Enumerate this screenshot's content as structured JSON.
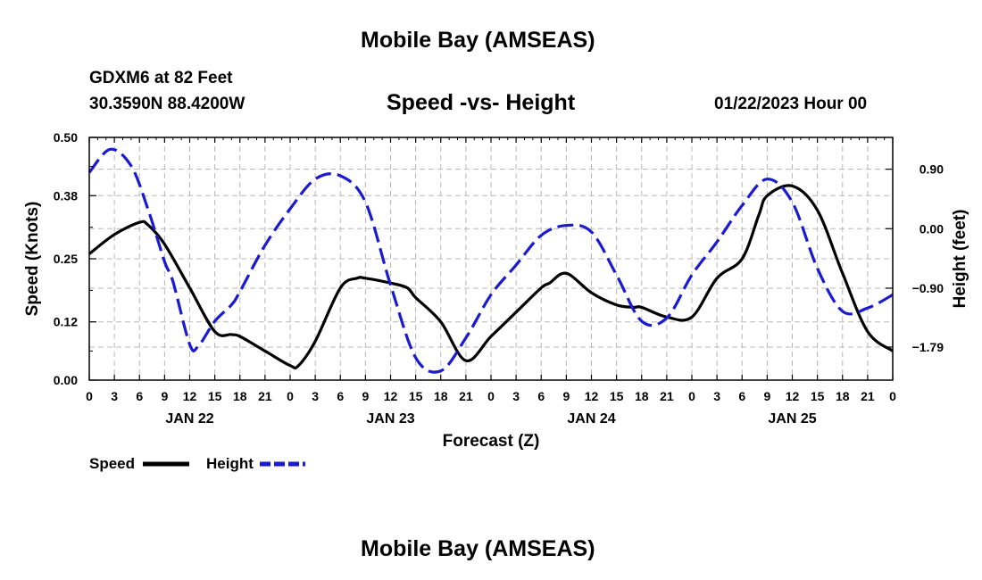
{
  "header": {
    "title": "Mobile Bay (AMSEAS)",
    "station": "GDXM6 at 82 Feet",
    "coords": "30.3590N  88.4200W",
    "datetime": "01/22/2023 Hour 00"
  },
  "footer": {
    "title": "Mobile Bay (AMSEAS)"
  },
  "legend": {
    "speed_label": "Speed",
    "height_label": "Height"
  },
  "colors": {
    "speed": "#000000",
    "height": "#1a1ad0",
    "grid": "#b8b8b8"
  },
  "chart_data": {
    "type": "line",
    "title": "Speed -vs- Height",
    "xlabel": "Forecast (Z)",
    "ylabel": "Speed (Knots)",
    "y2label": "Height (feet)",
    "xlim": [
      0,
      96
    ],
    "ylim": [
      0,
      0.5
    ],
    "y2lim": [
      -2.29,
      1.38
    ],
    "x_ticks": [
      0,
      3,
      6,
      9,
      12,
      15,
      18,
      21,
      24,
      27,
      30,
      33,
      36,
      39,
      42,
      45,
      48,
      51,
      54,
      57,
      60,
      63,
      66,
      69,
      72,
      75,
      78,
      81,
      84,
      87,
      90,
      93,
      96
    ],
    "x_tick_labels": [
      "0",
      "3",
      "6",
      "9",
      "12",
      "15",
      "18",
      "21",
      "0",
      "3",
      "6",
      "9",
      "12",
      "15",
      "18",
      "21",
      "0",
      "3",
      "6",
      "9",
      "12",
      "15",
      "18",
      "21",
      "0",
      "3",
      "6",
      "9",
      "12",
      "15",
      "18",
      "21",
      "0"
    ],
    "day_labels": [
      {
        "x": 12,
        "label": "JAN 22"
      },
      {
        "x": 36,
        "label": "JAN 23"
      },
      {
        "x": 60,
        "label": "JAN 24"
      },
      {
        "x": 84,
        "label": "JAN 25"
      }
    ],
    "y_ticks": [
      0.0,
      0.12,
      0.25,
      0.38,
      0.5
    ],
    "y_tick_labels": [
      "0.00",
      "0.12",
      "0.25",
      "0.38",
      "0.50"
    ],
    "y2_ticks": [
      0.9,
      0.0,
      -0.9,
      -1.79
    ],
    "y2_tick_labels": [
      "0.90",
      "0.00",
      "−0.90",
      "−1.79"
    ],
    "grid": true,
    "series": [
      {
        "name": "Speed",
        "axis": "left",
        "style": "solid",
        "x": [
          0,
          3,
          6,
          7,
          9,
          12,
          15,
          17,
          18,
          21,
          24,
          25,
          27,
          30,
          32,
          33,
          36,
          38,
          39,
          42,
          45,
          48,
          51,
          54,
          55,
          57,
          60,
          63,
          65,
          66,
          69,
          72,
          75,
          78,
          80,
          81,
          84,
          87,
          90,
          93,
          96
        ],
        "y": [
          0.26,
          0.3,
          0.325,
          0.32,
          0.28,
          0.19,
          0.1,
          0.094,
          0.09,
          0.06,
          0.03,
          0.03,
          0.08,
          0.19,
          0.21,
          0.21,
          0.2,
          0.19,
          0.17,
          0.12,
          0.04,
          0.09,
          0.14,
          0.19,
          0.2,
          0.22,
          0.18,
          0.155,
          0.15,
          0.15,
          0.13,
          0.13,
          0.21,
          0.25,
          0.34,
          0.38,
          0.4,
          0.35,
          0.22,
          0.1,
          0.06
        ]
      },
      {
        "name": "Height",
        "axis": "right",
        "style": "dashed",
        "x": [
          0,
          2.5,
          5,
          7,
          9,
          10,
          12,
          13,
          15,
          17,
          18,
          21,
          24,
          27,
          30,
          33,
          36,
          39,
          42,
          45,
          48,
          51,
          54,
          57,
          60,
          63,
          66,
          69,
          72,
          75,
          78,
          81,
          84,
          87,
          90,
          93,
          96
        ],
        "y": [
          0.85,
          1.2,
          0.95,
          0.3,
          -0.5,
          -0.8,
          -1.75,
          -1.78,
          -1.4,
          -1.15,
          -0.95,
          -0.25,
          0.3,
          0.75,
          0.8,
          0.4,
          -0.85,
          -1.95,
          -2.15,
          -1.65,
          -1.0,
          -0.55,
          -0.1,
          0.05,
          -0.05,
          -0.7,
          -1.4,
          -1.35,
          -0.7,
          -0.2,
          0.35,
          0.75,
          0.4,
          -0.6,
          -1.25,
          -1.2,
          -1.0
        ]
      }
    ]
  }
}
